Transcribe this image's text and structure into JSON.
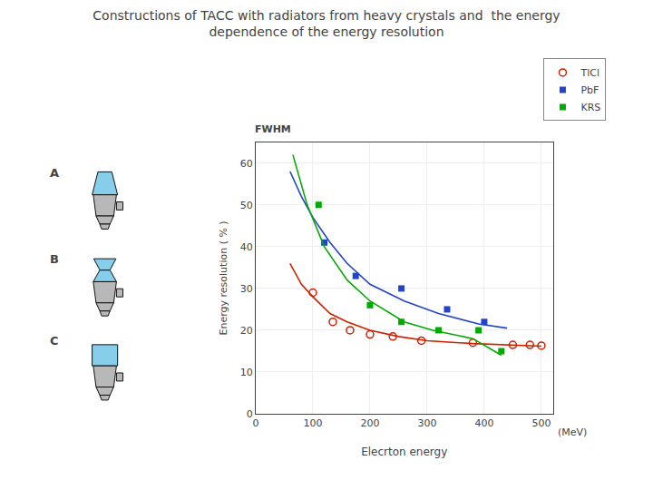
{
  "chart_data": {
    "type": "scatter",
    "title": "Constructions of TACC with radiators from heavy crystals and  the energy\ndependence of the energy resolution",
    "xlabel": "Elecrton energy",
    "ylabel": "Energy resolution ( % )",
    "annotations": [
      "FWHM",
      "(MeV)",
      "A",
      "B",
      "C"
    ],
    "xlim": [
      0,
      520
    ],
    "ylim": [
      0,
      65
    ],
    "xticks": [
      0,
      100,
      200,
      300,
      400,
      500
    ],
    "yticks": [
      0,
      10,
      20,
      30,
      40,
      50,
      60
    ],
    "grid": true,
    "legend": "upper right",
    "series": [
      {
        "name": "TlCl",
        "color": "#cc2200",
        "marker": "circle-open",
        "line_style": "solid",
        "x": [
          100,
          135,
          165,
          200,
          240,
          290,
          380,
          450,
          480,
          500
        ],
        "values": [
          29,
          22,
          20,
          19,
          18.5,
          17.5,
          17,
          16.5,
          16.5,
          16.3
        ],
        "curve_x": [
          60,
          80,
          100,
          130,
          160,
          200,
          250,
          300,
          380,
          450,
          500
        ],
        "curve_values": [
          36,
          31,
          28,
          24,
          22,
          20,
          18.5,
          17.5,
          16.8,
          16.5,
          16.2
        ]
      },
      {
        "name": "PbF",
        "color": "#2244cc",
        "marker": "square",
        "line_style": "solid",
        "x": [
          120,
          175,
          255,
          335,
          400
        ],
        "values": [
          41,
          33,
          30,
          25,
          22
        ],
        "curve_x": [
          60,
          80,
          100,
          130,
          160,
          200,
          260,
          320,
          390,
          440
        ],
        "curve_values": [
          58,
          52,
          47,
          41,
          36,
          31,
          27,
          24,
          21.5,
          20.5
        ]
      },
      {
        "name": "KRS",
        "color": "#00aa00",
        "marker": "square",
        "line_style": "solid",
        "x": [
          110,
          200,
          255,
          320,
          390,
          430
        ],
        "values": [
          50,
          26,
          22,
          20,
          20,
          15
        ],
        "curve_x": [
          65,
          90,
          120,
          160,
          200,
          260,
          310,
          380,
          430
        ],
        "curve_values": [
          62,
          50,
          40,
          32,
          27,
          22,
          20,
          18,
          14
        ]
      }
    ]
  }
}
